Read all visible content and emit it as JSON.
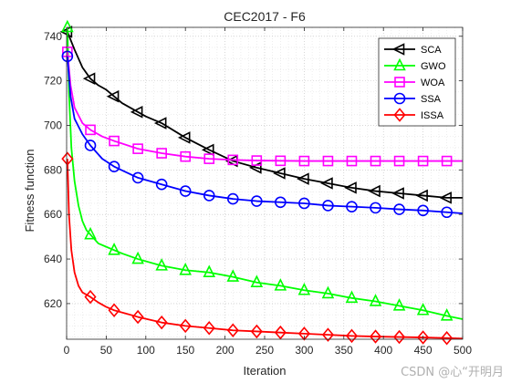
{
  "watermark": "CSDN @心“开明月",
  "chart_data": {
    "type": "line",
    "title": "CEC2017 - F6",
    "xlabel": "Iteration",
    "ylabel": "Fitness function",
    "xlim": [
      0,
      500
    ],
    "ylim": [
      604,
      744
    ],
    "xticks": [
      0,
      50,
      100,
      150,
      200,
      250,
      300,
      350,
      400,
      450,
      500
    ],
    "yticks": [
      620,
      640,
      660,
      680,
      700,
      720,
      740
    ],
    "grid": true,
    "legend_position": "top-right",
    "series": [
      {
        "name": "SCA",
        "color": "#000000",
        "marker": "triangle-left",
        "x": [
          1,
          10,
          20,
          30,
          40,
          50,
          60,
          70,
          80,
          90,
          100,
          120,
          150,
          180,
          210,
          240,
          270,
          300,
          330,
          360,
          390,
          420,
          450,
          480,
          500
        ],
        "y": [
          742,
          734,
          726,
          721,
          718,
          716,
          713,
          710,
          708,
          706,
          704,
          701,
          694.5,
          689,
          684,
          681,
          678.5,
          676,
          674,
          672,
          670.5,
          669.5,
          668.5,
          667.5,
          667.5
        ]
      },
      {
        "name": "GWO",
        "color": "#00ff00",
        "marker": "triangle-up",
        "x": [
          1,
          3,
          6,
          10,
          15,
          20,
          25,
          30,
          40,
          50,
          60,
          70,
          90,
          120,
          150,
          180,
          210,
          240,
          270,
          300,
          330,
          360,
          390,
          420,
          450,
          480,
          500
        ],
        "y": [
          744,
          715,
          690,
          675,
          664,
          657,
          653,
          651,
          647,
          645.5,
          644,
          642.5,
          640,
          637,
          635,
          634,
          632,
          629.5,
          628,
          626,
          624.5,
          622.5,
          621,
          619,
          617,
          614.5,
          613
        ]
      },
      {
        "name": "WOA",
        "color": "#ff00ff",
        "marker": "square",
        "x": [
          1,
          5,
          10,
          20,
          30,
          45,
          60,
          90,
          120,
          150,
          180,
          210,
          240,
          270,
          300,
          330,
          360,
          390,
          420,
          450,
          480,
          500
        ],
        "y": [
          733,
          718,
          708,
          701,
          698,
          695,
          693,
          689.5,
          687.5,
          686,
          685,
          684.5,
          684.2,
          684.1,
          684,
          684,
          684,
          684,
          684,
          684,
          684,
          684
        ]
      },
      {
        "name": "SSA",
        "color": "#0000ff",
        "marker": "circle",
        "x": [
          1,
          5,
          10,
          20,
          30,
          45,
          60,
          90,
          120,
          150,
          180,
          210,
          240,
          270,
          300,
          330,
          360,
          390,
          420,
          450,
          480,
          500
        ],
        "y": [
          731,
          713,
          703,
          696,
          691,
          685,
          681.5,
          676.5,
          673.5,
          670.5,
          668.5,
          667,
          666,
          665.5,
          665,
          664,
          663.5,
          663,
          662.3,
          661.8,
          661,
          660.5
        ]
      },
      {
        "name": "ISSA",
        "color": "#ff0000",
        "marker": "diamond",
        "x": [
          1,
          3,
          6,
          10,
          15,
          20,
          25,
          30,
          40,
          50,
          60,
          75,
          90,
          120,
          150,
          180,
          210,
          240,
          270,
          300,
          330,
          360,
          390,
          420,
          450,
          480,
          500
        ],
        "y": [
          685,
          660,
          644,
          634,
          628,
          625,
          624,
          623,
          620.5,
          618.5,
          617,
          615.5,
          614,
          611.5,
          610,
          609,
          608,
          607.5,
          607,
          606.5,
          606,
          605.5,
          605.2,
          605,
          604.8,
          604.5,
          604.3
        ]
      }
    ]
  }
}
